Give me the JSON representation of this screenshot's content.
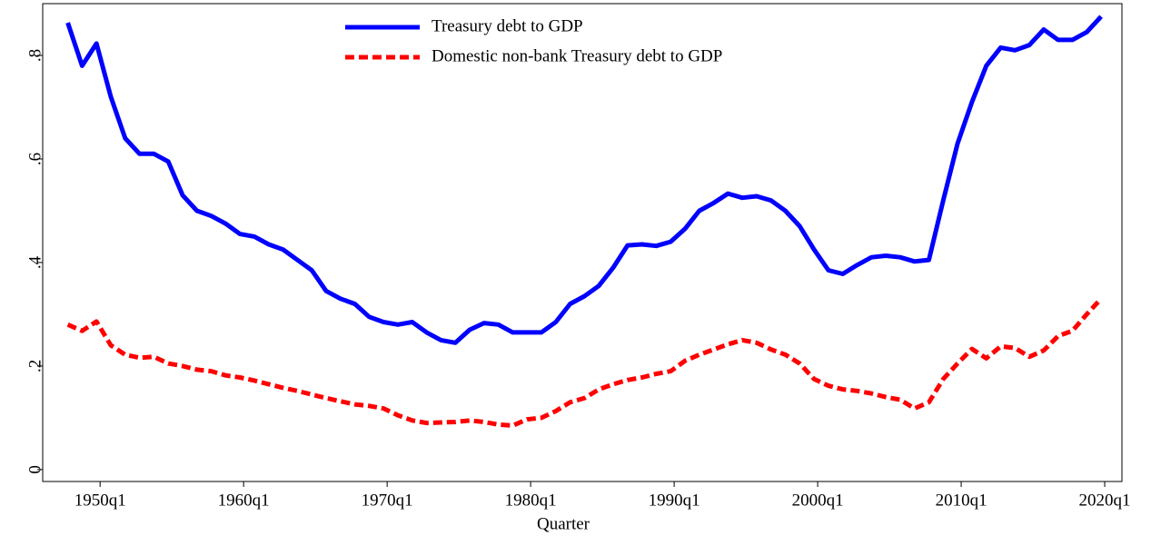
{
  "chart_data": {
    "type": "line",
    "x_label": "Quarter",
    "x": [
      1947.75,
      1948.75,
      1949.75,
      1950.75,
      1951.75,
      1952.75,
      1953.75,
      1954.75,
      1955.75,
      1956.75,
      1957.75,
      1958.75,
      1959.75,
      1960.75,
      1961.75,
      1962.75,
      1963.75,
      1964.75,
      1965.75,
      1966.75,
      1967.75,
      1968.75,
      1969.75,
      1970.75,
      1971.75,
      1972.75,
      1973.75,
      1974.75,
      1975.75,
      1976.75,
      1977.75,
      1978.75,
      1979.75,
      1980.75,
      1981.75,
      1982.75,
      1983.75,
      1984.75,
      1985.75,
      1986.75,
      1987.75,
      1988.75,
      1989.75,
      1990.75,
      1991.75,
      1992.75,
      1993.75,
      1994.75,
      1995.75,
      1996.75,
      1997.75,
      1998.75,
      1999.75,
      2000.75,
      2001.75,
      2002.75,
      2003.75,
      2004.75,
      2005.75,
      2006.75,
      2007.75,
      2008.75,
      2009.75,
      2010.75,
      2011.75,
      2012.75,
      2013.75,
      2014.75,
      2015.75,
      2016.75,
      2017.75,
      2018.75,
      2019.75
    ],
    "series": [
      {
        "name": "Treasury debt to GDP",
        "color": "#0000ff",
        "dash": false,
        "values": [
          0.863,
          0.78,
          0.823,
          0.72,
          0.64,
          0.61,
          0.61,
          0.595,
          0.53,
          0.5,
          0.49,
          0.475,
          0.455,
          0.45,
          0.435,
          0.425,
          0.405,
          0.385,
          0.345,
          0.33,
          0.32,
          0.295,
          0.285,
          0.28,
          0.285,
          0.265,
          0.25,
          0.245,
          0.27,
          0.283,
          0.28,
          0.265,
          0.265,
          0.265,
          0.285,
          0.32,
          0.335,
          0.355,
          0.39,
          0.433,
          0.435,
          0.432,
          0.44,
          0.465,
          0.5,
          0.515,
          0.533,
          0.525,
          0.528,
          0.52,
          0.5,
          0.47,
          0.425,
          0.385,
          0.378,
          0.395,
          0.41,
          0.413,
          0.41,
          0.402,
          0.405,
          0.52,
          0.63,
          0.71,
          0.78,
          0.815,
          0.81,
          0.82,
          0.85,
          0.83,
          0.83,
          0.845,
          0.875
        ]
      },
      {
        "name": "Domestic non-bank Treasury debt to GDP",
        "color": "#ff0000",
        "dash": true,
        "values": [
          0.28,
          0.268,
          0.286,
          0.24,
          0.222,
          0.216,
          0.218,
          0.205,
          0.2,
          0.193,
          0.19,
          0.182,
          0.178,
          0.172,
          0.165,
          0.158,
          0.152,
          0.145,
          0.138,
          0.132,
          0.126,
          0.123,
          0.118,
          0.105,
          0.095,
          0.09,
          0.091,
          0.092,
          0.095,
          0.092,
          0.087,
          0.085,
          0.097,
          0.1,
          0.113,
          0.13,
          0.138,
          0.155,
          0.165,
          0.173,
          0.178,
          0.185,
          0.19,
          0.21,
          0.222,
          0.232,
          0.242,
          0.25,
          0.245,
          0.232,
          0.222,
          0.205,
          0.175,
          0.162,
          0.155,
          0.152,
          0.147,
          0.14,
          0.135,
          0.118,
          0.13,
          0.175,
          0.205,
          0.233,
          0.215,
          0.238,
          0.235,
          0.218,
          0.23,
          0.258,
          0.268,
          0.3,
          0.33
        ]
      }
    ],
    "xlim": [
      1946,
      2021.2
    ],
    "xticks": [
      {
        "value": 1950,
        "label": "1950q1"
      },
      {
        "value": 1960,
        "label": "1960q1"
      },
      {
        "value": 1970,
        "label": "1970q1"
      },
      {
        "value": 1980,
        "label": "1980q1"
      },
      {
        "value": 1990,
        "label": "1990q1"
      },
      {
        "value": 2000,
        "label": "2000q1"
      },
      {
        "value": 2010,
        "label": "2010q1"
      },
      {
        "value": 2020,
        "label": "2020q1"
      }
    ],
    "ylim": [
      -0.023,
      0.9
    ],
    "yticks": [
      0,
      {
        "value": 0.2,
        "label": ".2"
      },
      {
        "value": 0.4,
        "label": ".4"
      },
      {
        "value": 0.6,
        "label": ".6"
      },
      {
        "value": 0.8,
        "label": ".8"
      }
    ],
    "grid": false,
    "legend": "top"
  }
}
